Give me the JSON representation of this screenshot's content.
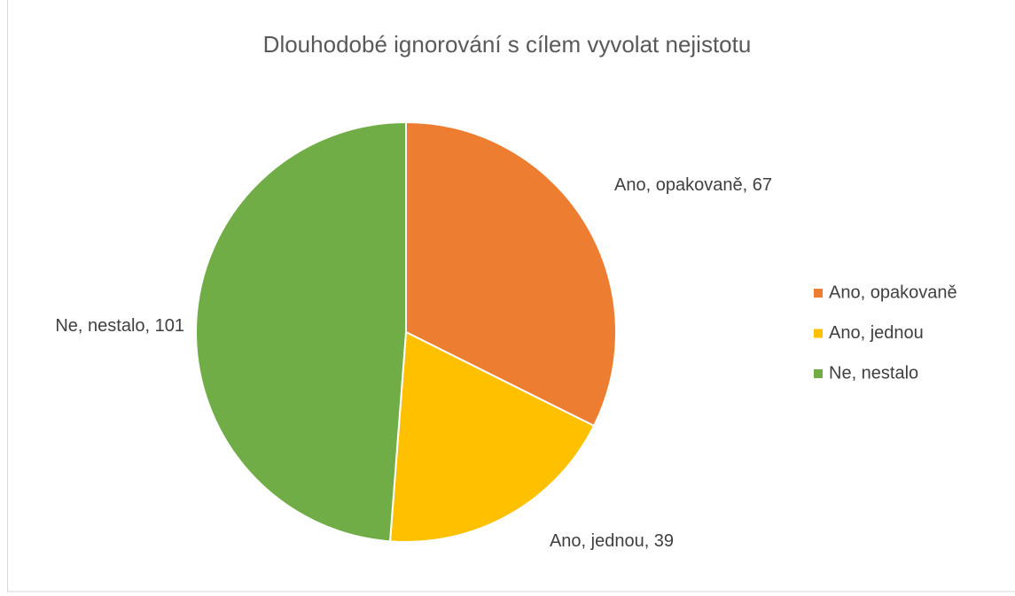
{
  "chart_data": {
    "type": "pie",
    "title": "Dlouhodobé ignorování s cílem vyvolat nejistotu",
    "categories": [
      "Ano, opakovaně",
      "Ano, jednou",
      "Ne, nestalo"
    ],
    "values": [
      67,
      39,
      101
    ],
    "value_labels": [
      "Ano, opakovaně, 67",
      "Ano, jednou, 39",
      "Ne, nestalo, 101"
    ],
    "colors": [
      "#ed7d31",
      "#ffc000",
      "#70ad47"
    ],
    "legend": "right"
  }
}
